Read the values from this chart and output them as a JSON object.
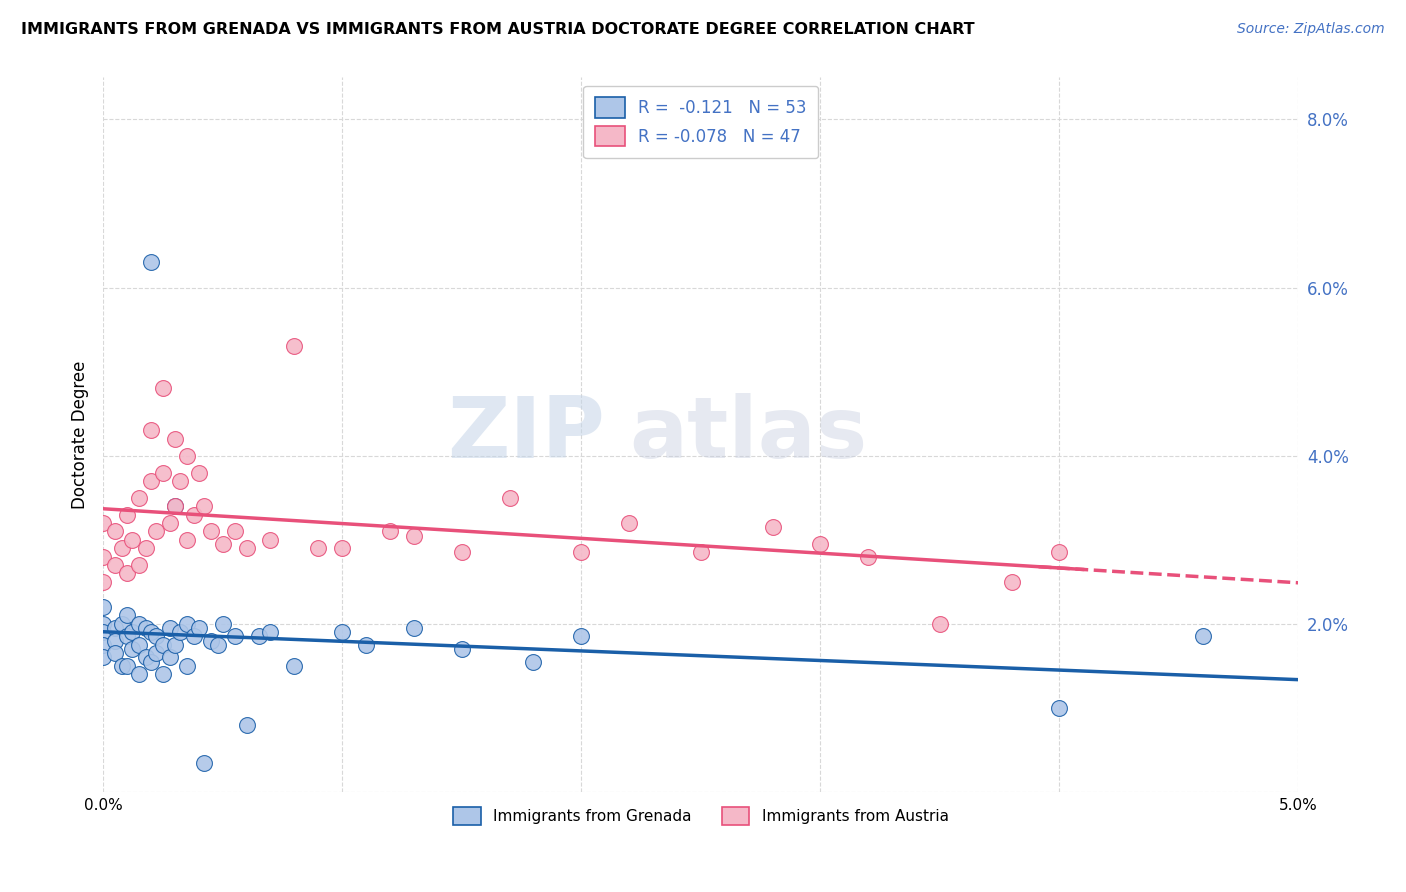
{
  "title": "IMMIGRANTS FROM GRENADA VS IMMIGRANTS FROM AUSTRIA DOCTORATE DEGREE CORRELATION CHART",
  "source": "Source: ZipAtlas.com",
  "ylabel": "Doctorate Degree",
  "xmin": 0.0,
  "xmax": 0.05,
  "ymin": 0.0,
  "ymax": 0.085,
  "yticks": [
    0.0,
    0.02,
    0.04,
    0.06,
    0.08
  ],
  "ytick_labels": [
    "",
    "2.0%",
    "4.0%",
    "6.0%",
    "8.0%"
  ],
  "legend_r1": "R =  -0.121   N = 53",
  "legend_r2": "R = -0.078   N = 47",
  "background_color": "#ffffff",
  "grid_color": "#d8d8d8",
  "color_grenada": "#aec6e8",
  "color_austria": "#f5b8c8",
  "line_color_grenada": "#1a5fa8",
  "line_color_austria": "#e8507a",
  "watermark_zip": "ZIP",
  "watermark_atlas": "atlas",
  "grenada_x": [
    0.0,
    0.0,
    0.0,
    0.0,
    0.0,
    0.0005,
    0.0005,
    0.0005,
    0.0008,
    0.0008,
    0.001,
    0.001,
    0.001,
    0.0012,
    0.0012,
    0.0015,
    0.0015,
    0.0015,
    0.0018,
    0.0018,
    0.002,
    0.002,
    0.002,
    0.0022,
    0.0022,
    0.0025,
    0.0025,
    0.0028,
    0.0028,
    0.003,
    0.003,
    0.0032,
    0.0035,
    0.0035,
    0.0038,
    0.004,
    0.0042,
    0.0045,
    0.0048,
    0.005,
    0.0055,
    0.006,
    0.0065,
    0.007,
    0.008,
    0.01,
    0.011,
    0.013,
    0.015,
    0.018,
    0.02,
    0.04,
    0.046
  ],
  "grenada_y": [
    0.02,
    0.019,
    0.0175,
    0.016,
    0.022,
    0.0195,
    0.018,
    0.0165,
    0.02,
    0.015,
    0.021,
    0.0185,
    0.015,
    0.019,
    0.017,
    0.02,
    0.0175,
    0.014,
    0.0195,
    0.016,
    0.063,
    0.019,
    0.0155,
    0.0185,
    0.0165,
    0.0175,
    0.014,
    0.0195,
    0.016,
    0.034,
    0.0175,
    0.019,
    0.02,
    0.015,
    0.0185,
    0.0195,
    0.0035,
    0.018,
    0.0175,
    0.02,
    0.0185,
    0.008,
    0.0185,
    0.019,
    0.015,
    0.019,
    0.0175,
    0.0195,
    0.017,
    0.0155,
    0.0185,
    0.01,
    0.0185
  ],
  "austria_x": [
    0.0,
    0.0,
    0.0,
    0.0005,
    0.0005,
    0.0008,
    0.001,
    0.001,
    0.0012,
    0.0015,
    0.0015,
    0.0018,
    0.002,
    0.002,
    0.0022,
    0.0025,
    0.0025,
    0.0028,
    0.003,
    0.003,
    0.0032,
    0.0035,
    0.0035,
    0.0038,
    0.004,
    0.0042,
    0.0045,
    0.005,
    0.0055,
    0.006,
    0.007,
    0.008,
    0.009,
    0.01,
    0.012,
    0.013,
    0.015,
    0.017,
    0.02,
    0.022,
    0.025,
    0.028,
    0.03,
    0.032,
    0.035,
    0.038,
    0.04
  ],
  "austria_y": [
    0.032,
    0.028,
    0.025,
    0.031,
    0.027,
    0.029,
    0.033,
    0.026,
    0.03,
    0.035,
    0.027,
    0.029,
    0.043,
    0.037,
    0.031,
    0.048,
    0.038,
    0.032,
    0.042,
    0.034,
    0.037,
    0.04,
    0.03,
    0.033,
    0.038,
    0.034,
    0.031,
    0.0295,
    0.031,
    0.029,
    0.03,
    0.053,
    0.029,
    0.029,
    0.031,
    0.0305,
    0.0285,
    0.035,
    0.0285,
    0.032,
    0.0285,
    0.0315,
    0.0295,
    0.028,
    0.02,
    0.025,
    0.0285
  ]
}
